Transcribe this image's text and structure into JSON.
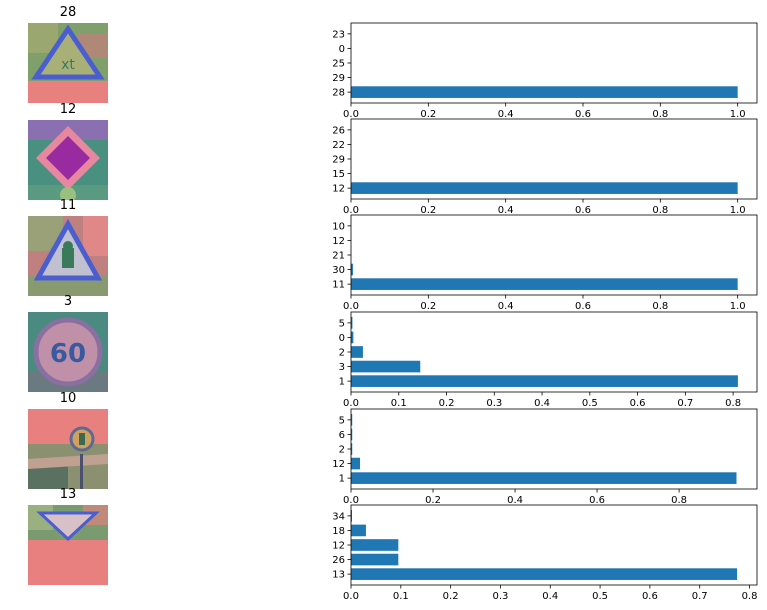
{
  "signs": [
    {
      "title": "28",
      "icon": "children-crossing-sign-icon"
    },
    {
      "title": "12",
      "icon": "priority-road-sign-icon"
    },
    {
      "title": "11",
      "icon": "right-of-way-sign-icon"
    },
    {
      "title": "3",
      "icon": "speed-limit-60-sign-icon"
    },
    {
      "title": "10",
      "icon": "no-passing-trucks-sign-icon"
    },
    {
      "title": "13",
      "icon": "yield-sign-icon"
    }
  ],
  "colors": {
    "bar": "#1f77b4"
  },
  "chart_data": [
    {
      "type": "bar",
      "orientation": "horizontal",
      "categories": [
        "28",
        "29",
        "25",
        "0",
        "23"
      ],
      "values": [
        1.0,
        0.0,
        0.0,
        0.0,
        0.0
      ],
      "xlim": [
        0,
        1.05
      ],
      "xticks": [
        "0.0",
        "0.2",
        "0.4",
        "0.6",
        "0.8",
        "1.0"
      ],
      "xtick_values": [
        0,
        0.2,
        0.4,
        0.6,
        0.8,
        1.0
      ]
    },
    {
      "type": "bar",
      "orientation": "horizontal",
      "categories": [
        "12",
        "15",
        "29",
        "22",
        "26"
      ],
      "values": [
        1.0,
        0.0,
        0.0,
        0.0,
        0.0
      ],
      "xlim": [
        0,
        1.05
      ],
      "xticks": [
        "0.0",
        "0.2",
        "0.4",
        "0.6",
        "0.8",
        "1.0"
      ],
      "xtick_values": [
        0,
        0.2,
        0.4,
        0.6,
        0.8,
        1.0
      ]
    },
    {
      "type": "bar",
      "orientation": "horizontal",
      "categories": [
        "11",
        "30",
        "21",
        "12",
        "10"
      ],
      "values": [
        1.0,
        0.005,
        0.0,
        0.0,
        0.0
      ],
      "xlim": [
        0,
        1.05
      ],
      "xticks": [
        "0.0",
        "0.2",
        "0.4",
        "0.6",
        "0.8",
        "1.0"
      ],
      "xtick_values": [
        0,
        0.2,
        0.4,
        0.6,
        0.8,
        1.0
      ]
    },
    {
      "type": "bar",
      "orientation": "horizontal",
      "categories": [
        "1",
        "3",
        "2",
        "0",
        "5"
      ],
      "values": [
        0.81,
        0.145,
        0.025,
        0.005,
        0.003
      ],
      "xlim": [
        0,
        0.85
      ],
      "xticks": [
        "0.0",
        "0.1",
        "0.2",
        "0.3",
        "0.4",
        "0.5",
        "0.6",
        "0.7",
        "0.8"
      ],
      "xtick_values": [
        0,
        0.1,
        0.2,
        0.3,
        0.4,
        0.5,
        0.6,
        0.7,
        0.8
      ]
    },
    {
      "type": "bar",
      "orientation": "horizontal",
      "categories": [
        "1",
        "12",
        "2",
        "6",
        "5"
      ],
      "values": [
        0.94,
        0.022,
        0.003,
        0.003,
        0.003
      ],
      "xlim": [
        0,
        0.99
      ],
      "xticks": [
        "0.0",
        "0.2",
        "0.4",
        "0.6",
        "0.8"
      ],
      "xtick_values": [
        0,
        0.2,
        0.4,
        0.6,
        0.8
      ]
    },
    {
      "type": "bar",
      "orientation": "horizontal",
      "categories": [
        "13",
        "26",
        "12",
        "18",
        "34"
      ],
      "values": [
        0.775,
        0.095,
        0.095,
        0.03,
        0.002
      ],
      "xlim": [
        0,
        0.815
      ],
      "xticks": [
        "0.0",
        "0.1",
        "0.2",
        "0.3",
        "0.4",
        "0.5",
        "0.6",
        "0.7",
        "0.8"
      ],
      "xtick_values": [
        0,
        0.1,
        0.2,
        0.3,
        0.4,
        0.5,
        0.6,
        0.7,
        0.8
      ]
    }
  ]
}
